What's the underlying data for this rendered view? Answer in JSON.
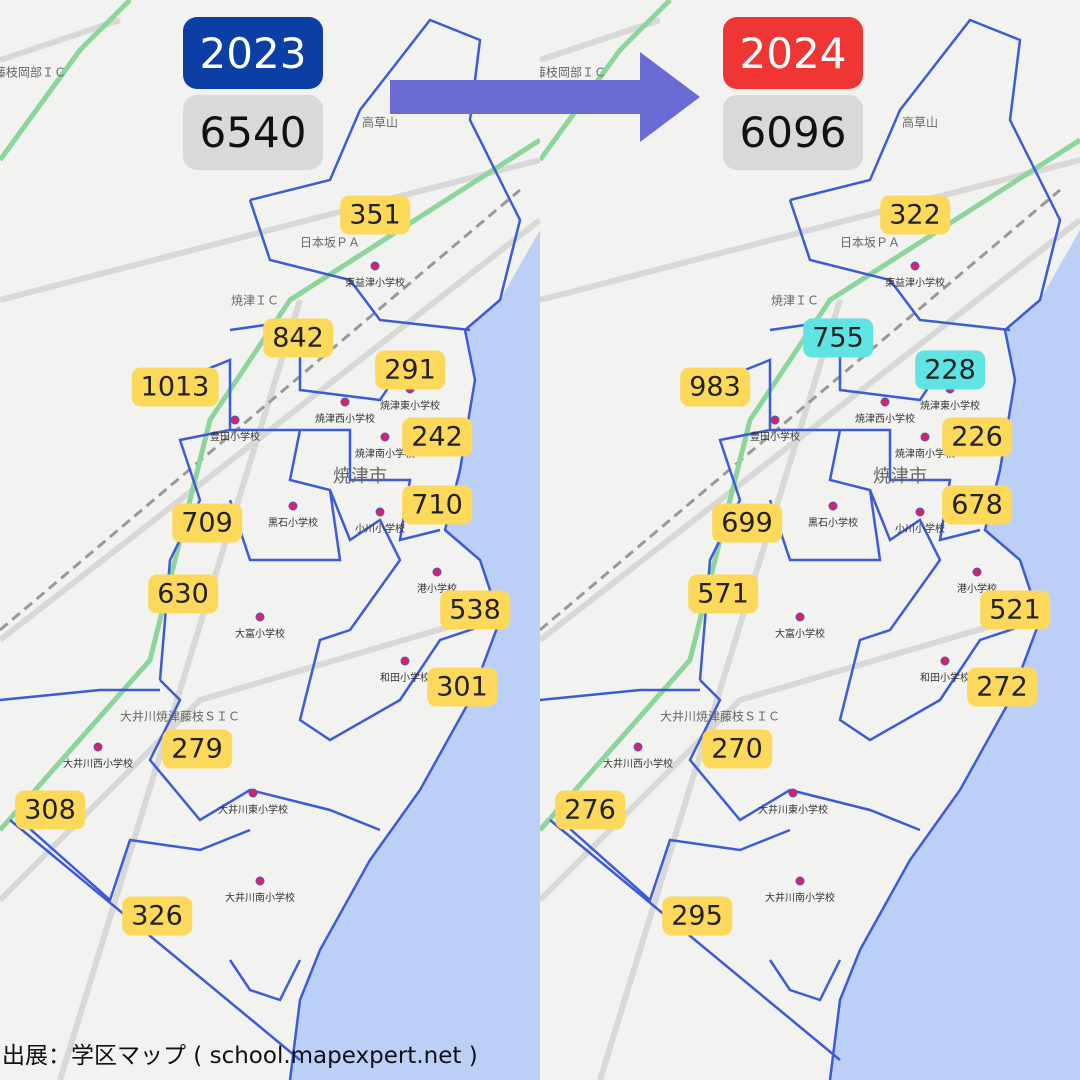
{
  "source": "出展：学区マップ ( school.mapexpert.net )",
  "panels": [
    {
      "year": 2023,
      "year_color": "#0b3fa6",
      "total": 6540,
      "districts": [
        351,
        842,
        291,
        1013,
        242,
        709,
        710,
        630,
        538,
        301,
        279,
        308,
        326
      ],
      "district_colors": [
        "#fcd95a",
        "#fcd95a",
        "#fcd95a",
        "#fcd95a",
        "#fcd95a",
        "#fcd95a",
        "#fcd95a",
        "#fcd95a",
        "#fcd95a",
        "#fcd95a",
        "#fcd95a",
        "#fcd95a",
        "#fcd95a"
      ]
    },
    {
      "year": 2024,
      "year_color": "#f03535",
      "total": 6096,
      "districts": [
        322,
        755,
        228,
        983,
        226,
        699,
        678,
        571,
        521,
        272,
        270,
        276,
        295
      ],
      "district_colors": [
        "#fcd95a",
        "#5fe3e3",
        "#5fe3e3",
        "#fcd95a",
        "#fcd95a",
        "#fcd95a",
        "#fcd95a",
        "#fcd95a",
        "#fcd95a",
        "#fcd95a",
        "#fcd95a",
        "#fcd95a",
        "#fcd95a"
      ]
    }
  ],
  "schools": [
    "東益津小学校",
    "焼津東小学校",
    "焼津西小学校",
    "豊田小学校",
    "焼津南小学校",
    "黒石小学校",
    "小川小学校",
    "港小学校",
    "大富小学校",
    "和田小学校",
    "大井川西小学校",
    "大井川東小学校",
    "大井川南小学校"
  ],
  "places": [
    "藤枝岡部ＩＣ",
    "高草山",
    "日本坂ＰＡ",
    "焼津ＩＣ",
    "焼津市",
    "大井川焼津藤枝ＳＩＣ"
  ]
}
